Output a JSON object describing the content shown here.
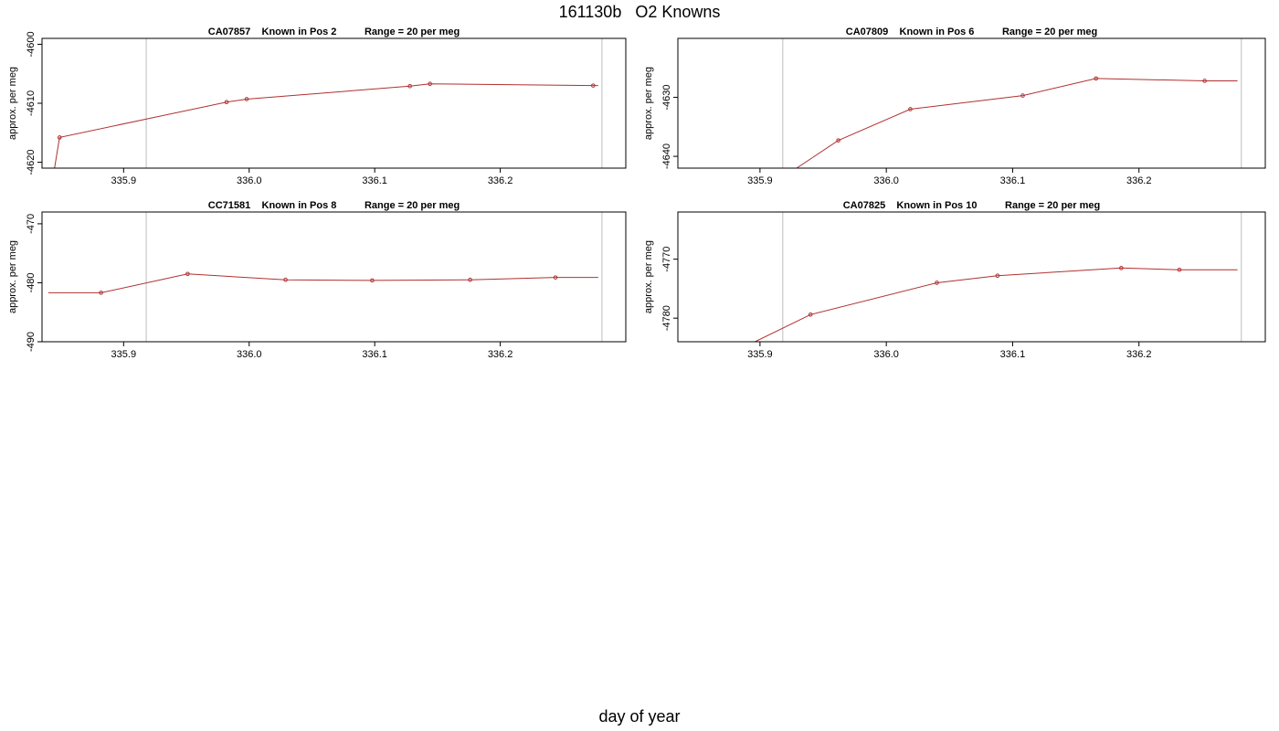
{
  "title": "161130b   O2 Knowns",
  "xlabel": "day of year",
  "colors": {
    "line": "#b03030",
    "marker": "#b03030",
    "vline": "#c8c8c8",
    "frame": "#000000"
  },
  "chart_data": [
    {
      "type": "line",
      "title": "CA07857    Known in Pos 2          Range = 20 per meg",
      "ylabel": "approx. per meg",
      "xlim": [
        335.835,
        336.3
      ],
      "ylim": [
        -4621,
        -4599
      ],
      "xticks": [
        335.9,
        336.0,
        336.1,
        336.2
      ],
      "xtick_labels": [
        "335.9",
        "336.0",
        "336.1",
        "336.2"
      ],
      "yticks": [
        -4620,
        -4610,
        -4600
      ],
      "ytick_labels": [
        "-4620",
        "-4610",
        "-4600"
      ],
      "vlines": [
        335.918,
        336.281
      ],
      "points": {
        "x": [
          335.849,
          335.982,
          335.998,
          336.128,
          336.144,
          336.274
        ],
        "y": [
          -4615.8,
          -4609.8,
          -4609.3,
          -4607.1,
          -4606.7,
          -4607.0
        ]
      },
      "line": {
        "x": [
          335.845,
          335.849,
          335.982,
          335.998,
          336.128,
          336.144,
          336.274,
          336.278
        ],
        "y": [
          -4621.0,
          -4615.8,
          -4609.8,
          -4609.3,
          -4607.1,
          -4606.7,
          -4607.0,
          -4607.0
        ]
      }
    },
    {
      "type": "line",
      "title": "CA07809    Known in Pos 6          Range = 20 per meg",
      "ylabel": "approx. per meg",
      "xlim": [
        335.835,
        336.3
      ],
      "ylim": [
        -4642,
        -4620
      ],
      "xticks": [
        335.9,
        336.0,
        336.1,
        336.2
      ],
      "xtick_labels": [
        "335.9",
        "336.0",
        "336.1",
        "336.2"
      ],
      "yticks": [
        -4640,
        -4630
      ],
      "ytick_labels": [
        "-4640",
        "-4630"
      ],
      "vlines": [
        335.918,
        336.281
      ],
      "points": {
        "x": [
          335.962,
          336.019,
          336.108,
          336.166,
          336.252
        ],
        "y": [
          -4637.3,
          -4632.0,
          -4629.7,
          -4626.8,
          -4627.2
        ]
      },
      "line": {
        "x": [
          335.929,
          335.962,
          336.019,
          336.108,
          336.166,
          336.252,
          336.278
        ],
        "y": [
          -4642.0,
          -4637.3,
          -4632.0,
          -4629.7,
          -4626.8,
          -4627.2,
          -4627.2
        ]
      }
    },
    {
      "type": "line",
      "title": "CC71581    Known in Pos 8          Range = 20 per meg",
      "ylabel": "approx. per meg",
      "xlim": [
        335.835,
        336.3
      ],
      "ylim": [
        -490,
        -468
      ],
      "xticks": [
        335.9,
        336.0,
        336.1,
        336.2
      ],
      "xtick_labels": [
        "335.9",
        "336.0",
        "336.1",
        "336.2"
      ],
      "yticks": [
        -490,
        -480,
        -470
      ],
      "ytick_labels": [
        "-490",
        "-480",
        "-470"
      ],
      "vlines": [
        335.918,
        336.281
      ],
      "points": {
        "x": [
          335.882,
          335.951,
          336.029,
          336.098,
          336.176,
          336.244
        ],
        "y": [
          -481.7,
          -478.5,
          -479.5,
          -479.6,
          -479.5,
          -479.1
        ]
      },
      "line": {
        "x": [
          335.84,
          335.882,
          335.951,
          336.029,
          336.098,
          336.176,
          336.244,
          336.278
        ],
        "y": [
          -481.7,
          -481.7,
          -478.5,
          -479.5,
          -479.6,
          -479.5,
          -479.1,
          -479.1
        ]
      }
    },
    {
      "type": "line",
      "title": "CA07825    Known in Pos 10          Range = 20 per meg",
      "ylabel": "approx. per meg",
      "xlim": [
        335.835,
        336.3
      ],
      "ylim": [
        -4784,
        -4762
      ],
      "xticks": [
        335.9,
        336.0,
        336.1,
        336.2
      ],
      "xtick_labels": [
        "335.9",
        "336.0",
        "336.1",
        "336.2"
      ],
      "yticks": [
        -4780,
        -4770
      ],
      "ytick_labels": [
        "-4780",
        "-4770"
      ],
      "vlines": [
        335.918,
        336.281
      ],
      "points": {
        "x": [
          335.94,
          336.04,
          336.088,
          336.186,
          336.232
        ],
        "y": [
          -4779.4,
          -4774.0,
          -4772.8,
          -4771.5,
          -4771.8
        ]
      },
      "line": {
        "x": [
          335.896,
          335.94,
          336.04,
          336.088,
          336.186,
          336.232,
          336.278
        ],
        "y": [
          -4784.0,
          -4779.4,
          -4774.0,
          -4772.8,
          -4771.5,
          -4771.8,
          -4771.8
        ]
      }
    }
  ]
}
